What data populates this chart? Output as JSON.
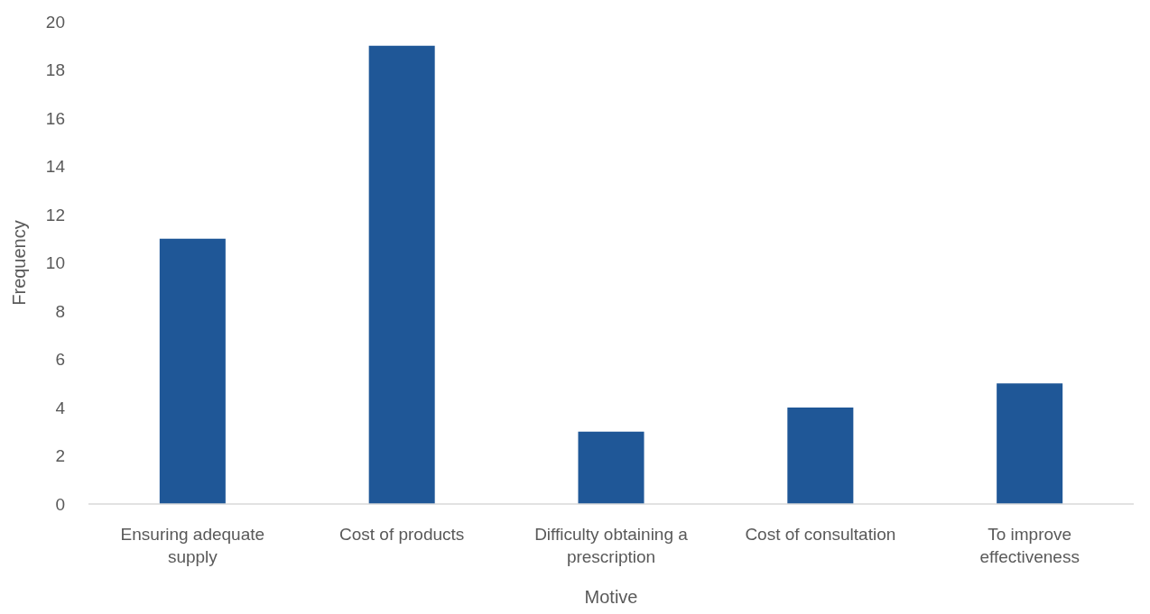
{
  "chart_data": {
    "type": "bar",
    "xlabel": "Motive",
    "ylabel": "Frequency",
    "categories": [
      "Ensuring adequate supply",
      "Cost of products",
      "Difficulty obtaining a prescription",
      "Cost of consultation",
      "To improve effectiveness"
    ],
    "values": [
      11,
      19,
      3,
      4,
      5
    ],
    "color": "#1f5797",
    "ylim": [
      0,
      20
    ],
    "yticks": [
      0,
      2,
      4,
      6,
      8,
      10,
      12,
      14,
      16,
      18,
      20
    ],
    "grid": false
  }
}
